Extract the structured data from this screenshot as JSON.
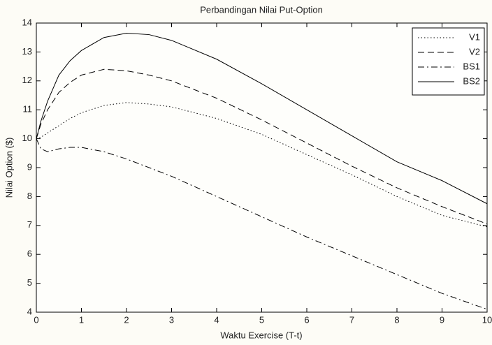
{
  "chart_data": {
    "type": "line",
    "title": "Perbandingan Nilai Put-Option",
    "xlabel": "Waktu Exercise (T-t)",
    "ylabel": "Nilai Option ($)",
    "x": [
      0,
      0.1,
      0.25,
      0.5,
      0.75,
      1,
      1.5,
      2,
      2.5,
      3,
      4,
      5,
      6,
      7,
      8,
      9,
      10
    ],
    "series": [
      {
        "name": "V1",
        "color": "#000000",
        "dash": "dotted",
        "values": [
          10.0,
          10.05,
          10.2,
          10.45,
          10.7,
          10.9,
          11.15,
          11.25,
          11.2,
          11.1,
          10.7,
          10.15,
          9.45,
          8.75,
          8.0,
          7.35,
          6.95
        ]
      },
      {
        "name": "V2",
        "color": "#000000",
        "dash": "dashed",
        "values": [
          10.0,
          10.5,
          11.0,
          11.6,
          11.95,
          12.2,
          12.4,
          12.35,
          12.2,
          12.0,
          11.4,
          10.65,
          9.85,
          9.05,
          8.3,
          7.65,
          7.05
        ]
      },
      {
        "name": "BS1",
        "color": "#000000",
        "dash": "dashdot",
        "values": [
          10.0,
          9.65,
          9.55,
          9.65,
          9.7,
          9.7,
          9.55,
          9.3,
          9.0,
          8.7,
          8.0,
          7.3,
          6.6,
          5.95,
          5.3,
          4.65,
          4.1
        ]
      },
      {
        "name": "BS2",
        "color": "#000000",
        "dash": "solid",
        "values": [
          10.0,
          10.6,
          11.3,
          12.2,
          12.7,
          13.05,
          13.5,
          13.65,
          13.6,
          13.4,
          12.75,
          11.9,
          11.0,
          10.1,
          9.2,
          8.55,
          7.75
        ]
      }
    ],
    "xlim": [
      0,
      10
    ],
    "xticks": [
      0,
      1,
      2,
      3,
      4,
      5,
      6,
      7,
      8,
      9,
      10
    ],
    "ylim": [
      4,
      14
    ],
    "yticks": [
      4,
      5,
      6,
      7,
      8,
      9,
      10,
      11,
      12,
      13,
      14
    ],
    "grid": false,
    "legend": "top-right"
  }
}
